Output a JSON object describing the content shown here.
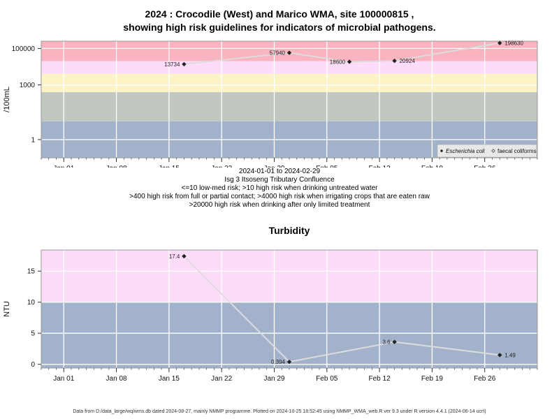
{
  "header": {
    "title_line1": "2024 : Crocodile (West) and Marico WMA, site 100000815 ,",
    "title_line2": "showing high risk guidelines for indicators of microbial pathogens."
  },
  "subtitle": {
    "date_range": "2024-01-01 to 2024-02-29",
    "site_name": "Isg 3 Itsoseng Tributary Confluence",
    "guideline_1": "<=10 low-med risk; >10 high risk when drinking untreated water",
    "guideline_2": ">400 high risk from full or partial contact; >4000 high risk when irrigating crops that are eaten raw",
    "guideline_3": ">20000 high risk when drinking after only limited treatment"
  },
  "footer": "Data from D:/data_large/wq/wms.db dated 2024-08-27, mainly NMMP programme. Plotted on 2024-10-25 18:52:45 using NMMP_WMA_web.R ver 9.3 under R version 4.4.1 (2024-06-14 ucrt)",
  "colors": {
    "band_red": "#f9b4c0",
    "band_pink": "#fddcf9",
    "band_yellow": "#fcf4c4",
    "band_grey": "#c0c8c0",
    "band_blue": "#a3b2cb",
    "line": "#dcdcdc",
    "point": "#222222"
  },
  "chart_data": [
    {
      "type": "line",
      "title": "",
      "ylabel": "/100mL",
      "yscale": "log",
      "ylim": [
        0.1,
        250000
      ],
      "xlim": [
        "2023-12-29",
        "2024-03-04"
      ],
      "x_ticks": [
        "Jan 01",
        "Jan 08",
        "Jan 15",
        "Jan 22",
        "Jan 29",
        "Feb 05",
        "Feb 12",
        "Feb 19",
        "Feb 26"
      ],
      "x_tick_dates": [
        "2024-01-01",
        "2024-01-08",
        "2024-01-15",
        "2024-01-22",
        "2024-01-29",
        "2024-02-05",
        "2024-02-12",
        "2024-02-19",
        "2024-02-26"
      ],
      "y_ticks": [
        1,
        1000,
        100000
      ],
      "y_tick_labels": [
        "1",
        "1000",
        "100000"
      ],
      "grid": true,
      "legend_position": "bottom-right",
      "bands": [
        {
          "from": 20000,
          "to": 250000,
          "color": "#f9b4c0"
        },
        {
          "from": 4000,
          "to": 20000,
          "color": "#fddcf9"
        },
        {
          "from": 400,
          "to": 4000,
          "color": "#fcf4c4"
        },
        {
          "from": 10,
          "to": 400,
          "color": "#c0c8c0"
        },
        {
          "from": 0.1,
          "to": 10,
          "color": "#a3b2cb"
        }
      ],
      "series": [
        {
          "name": "Escherichia coli",
          "marker": "diamond",
          "x": [
            "2024-01-17",
            "2024-01-31",
            "2024-02-08",
            "2024-02-14",
            "2024-02-28"
          ],
          "values": [
            13734,
            57940,
            18600,
            20924,
            198630
          ],
          "labels": [
            "13734",
            "57940",
            "18600",
            "20924",
            "198630"
          ],
          "label_side": [
            "left",
            "left",
            "left",
            "right",
            "right"
          ]
        },
        {
          "name": "faecal coliforms",
          "marker": "open-diamond",
          "x": [],
          "values": []
        }
      ]
    },
    {
      "type": "line",
      "title": "Turbidity",
      "ylabel": "NTU",
      "yscale": "linear",
      "ylim": [
        -0.6,
        18.4
      ],
      "xlim": [
        "2023-12-29",
        "2024-03-04"
      ],
      "x_ticks": [
        "Jan 01",
        "Jan 08",
        "Jan 15",
        "Jan 22",
        "Jan 29",
        "Feb 05",
        "Feb 12",
        "Feb 19",
        "Feb 26"
      ],
      "x_tick_dates": [
        "2024-01-01",
        "2024-01-08",
        "2024-01-15",
        "2024-01-22",
        "2024-01-29",
        "2024-02-05",
        "2024-02-12",
        "2024-02-19",
        "2024-02-26"
      ],
      "y_ticks": [
        0,
        5,
        10,
        15
      ],
      "y_tick_labels": [
        "0",
        "5",
        "10",
        "15"
      ],
      "grid": true,
      "bands": [
        {
          "from": 10,
          "to": 18.4,
          "color": "#fddcf9"
        },
        {
          "from": -0.6,
          "to": 10,
          "color": "#a3b2cb"
        }
      ],
      "series": [
        {
          "name": "",
          "marker": "diamond",
          "x": [
            "2024-01-17",
            "2024-01-31",
            "2024-02-14",
            "2024-02-28"
          ],
          "values": [
            17.4,
            0.394,
            3.6,
            1.49
          ],
          "labels": [
            "17.4",
            "0.394",
            "3.6",
            "1.49"
          ],
          "label_side": [
            "left",
            "left",
            "left",
            "right"
          ]
        }
      ]
    }
  ]
}
